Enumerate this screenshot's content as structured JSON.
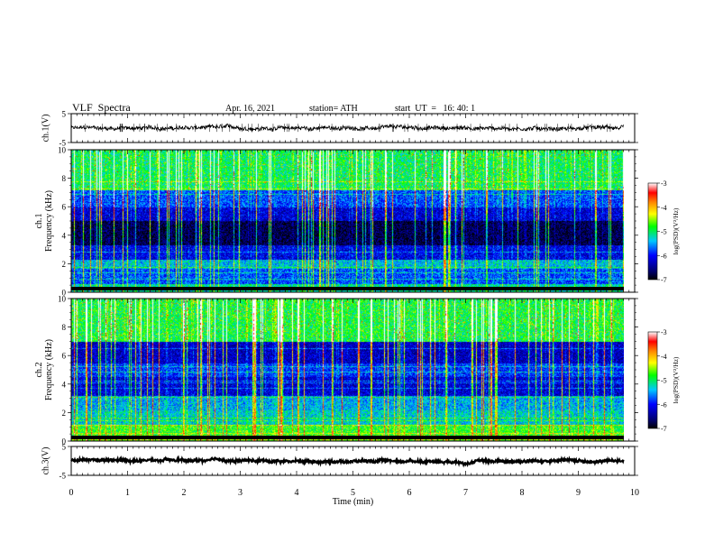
{
  "header": {
    "title": "VLF  Spectra",
    "date": "Apr. 16, 2021",
    "station": "station= ATH",
    "start": "start  UT  =   16: 40: 1"
  },
  "chart_data": [
    {
      "type": "line",
      "name": "ch1-waveform",
      "ylabel": "ch.1(V)",
      "ylim": [
        -5,
        5
      ],
      "yticks": [
        "5",
        "-5"
      ],
      "xlim": [
        0,
        10
      ],
      "trace_range_min": 9.8,
      "trace_level_v": 0.0,
      "trace_spread_v": 1.3
    },
    {
      "type": "heatmap",
      "name": "ch1-spectrogram",
      "ylabel": "ch.1\nFrequency  (kHz)",
      "ylim": [
        0,
        10
      ],
      "yticks": [
        "0",
        "2",
        "4",
        "6",
        "8",
        "10"
      ],
      "xlim": [
        0,
        9.8
      ],
      "colorbar": {
        "label": "log(PSD)(V²/Hz)",
        "ticks": [
          "-3",
          "-4",
          "-5",
          "-6",
          "-7"
        ],
        "range": [
          -7,
          -3
        ]
      }
    },
    {
      "type": "heatmap",
      "name": "ch2-spectrogram",
      "ylabel": "ch.2\nFrequency  (kHz)",
      "ylim": [
        0,
        10
      ],
      "yticks": [
        "0",
        "2",
        "4",
        "6",
        "8",
        "10"
      ],
      "xlim": [
        0,
        9.8
      ],
      "colorbar": {
        "label": "log(PSD)(V²/Hz)",
        "ticks": [
          "-3",
          "-4",
          "-5",
          "-6",
          "-7"
        ],
        "range": [
          -7,
          -3
        ]
      }
    },
    {
      "type": "line",
      "name": "ch3-waveform",
      "ylabel": "ch.3(V)",
      "ylim": [
        -5,
        5
      ],
      "yticks": [
        "5",
        "-5"
      ],
      "xlim": [
        0,
        10
      ],
      "trace_range_min": 9.8,
      "trace_level_v": 0.0,
      "trace_spread_v": 0.8
    }
  ],
  "x_axis": {
    "label": "Time  (min)",
    "ticks": [
      "0",
      "1",
      "2",
      "3",
      "4",
      "5",
      "6",
      "7",
      "8",
      "9",
      "10"
    ],
    "range": [
      0,
      10
    ]
  }
}
